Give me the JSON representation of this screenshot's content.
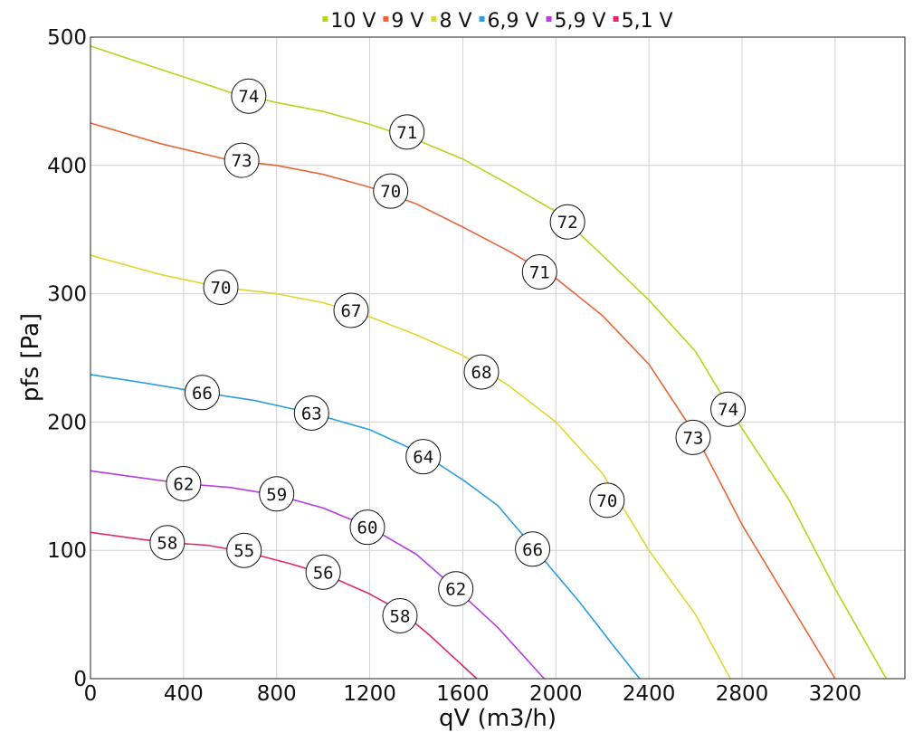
{
  "chart_data": {
    "type": "line",
    "xlabel": "qV (m3/h)",
    "ylabel": "pfs [Pa]",
    "xlim": [
      0,
      3500
    ],
    "ylim": [
      0,
      500
    ],
    "xticks": [
      0,
      400,
      800,
      1200,
      1600,
      2000,
      2400,
      2800,
      3200
    ],
    "yticks": [
      0,
      100,
      200,
      300,
      400,
      500
    ],
    "grid": true,
    "legend_position": "top",
    "series": [
      {
        "name": "10 V",
        "color": "#b5d61b",
        "points": [
          [
            0,
            493
          ],
          [
            300,
            475
          ],
          [
            600,
            457
          ],
          [
            800,
            449
          ],
          [
            1000,
            442
          ],
          [
            1200,
            432
          ],
          [
            1400,
            420
          ],
          [
            1600,
            405
          ],
          [
            1800,
            385
          ],
          [
            2000,
            364
          ],
          [
            2200,
            330
          ],
          [
            2400,
            295
          ],
          [
            2600,
            255
          ],
          [
            2800,
            195
          ],
          [
            3000,
            140
          ],
          [
            3200,
            70
          ],
          [
            3420,
            0
          ]
        ],
        "markers": [
          {
            "x": 680,
            "y": 454,
            "label": "74"
          },
          {
            "x": 1360,
            "y": 426,
            "label": "71"
          },
          {
            "x": 2050,
            "y": 356,
            "label": "72"
          },
          {
            "x": 2740,
            "y": 210,
            "label": "74"
          }
        ]
      },
      {
        "name": "9 V",
        "color": "#e8653a",
        "points": [
          [
            0,
            433
          ],
          [
            300,
            417
          ],
          [
            600,
            404
          ],
          [
            800,
            400
          ],
          [
            1000,
            393
          ],
          [
            1200,
            383
          ],
          [
            1400,
            370
          ],
          [
            1600,
            352
          ],
          [
            1800,
            333
          ],
          [
            2000,
            312
          ],
          [
            2200,
            283
          ],
          [
            2400,
            245
          ],
          [
            2600,
            190
          ],
          [
            2800,
            120
          ],
          [
            3000,
            60
          ],
          [
            3200,
            0
          ]
        ],
        "markers": [
          {
            "x": 650,
            "y": 404,
            "label": "73"
          },
          {
            "x": 1290,
            "y": 380,
            "label": "70"
          },
          {
            "x": 1930,
            "y": 317,
            "label": "71"
          },
          {
            "x": 2590,
            "y": 188,
            "label": "73"
          }
        ]
      },
      {
        "name": "8 V",
        "color": "#e0d62e",
        "points": [
          [
            0,
            330
          ],
          [
            300,
            315
          ],
          [
            560,
            305
          ],
          [
            800,
            300
          ],
          [
            1000,
            293
          ],
          [
            1200,
            282
          ],
          [
            1400,
            268
          ],
          [
            1600,
            252
          ],
          [
            1800,
            228
          ],
          [
            2000,
            200
          ],
          [
            2200,
            160
          ],
          [
            2400,
            100
          ],
          [
            2600,
            50
          ],
          [
            2750,
            0
          ]
        ],
        "markers": [
          {
            "x": 560,
            "y": 305,
            "label": "70"
          },
          {
            "x": 1120,
            "y": 287,
            "label": "67"
          },
          {
            "x": 1680,
            "y": 239,
            "label": "68"
          },
          {
            "x": 2220,
            "y": 139,
            "label": "70"
          }
        ]
      },
      {
        "name": "6,9 V",
        "color": "#2b9de0",
        "points": [
          [
            0,
            237
          ],
          [
            250,
            230
          ],
          [
            480,
            223
          ],
          [
            700,
            217
          ],
          [
            950,
            207
          ],
          [
            1200,
            194
          ],
          [
            1430,
            175
          ],
          [
            1600,
            155
          ],
          [
            1750,
            135
          ],
          [
            1900,
            103
          ],
          [
            2100,
            60
          ],
          [
            2250,
            25
          ],
          [
            2360,
            0
          ]
        ],
        "markers": [
          {
            "x": 480,
            "y": 223,
            "label": "66"
          },
          {
            "x": 950,
            "y": 207,
            "label": "63"
          },
          {
            "x": 1430,
            "y": 173,
            "label": "64"
          },
          {
            "x": 1900,
            "y": 101,
            "label": "66"
          }
        ]
      },
      {
        "name": "5,9 V",
        "color": "#b63ce0",
        "points": [
          [
            0,
            162
          ],
          [
            200,
            157
          ],
          [
            400,
            152
          ],
          [
            600,
            149
          ],
          [
            800,
            143
          ],
          [
            1000,
            133
          ],
          [
            1200,
            118
          ],
          [
            1400,
            97
          ],
          [
            1570,
            70
          ],
          [
            1750,
            40
          ],
          [
            1950,
            0
          ]
        ],
        "markers": [
          {
            "x": 400,
            "y": 152,
            "label": "62"
          },
          {
            "x": 800,
            "y": 144,
            "label": "59"
          },
          {
            "x": 1190,
            "y": 118,
            "label": "60"
          },
          {
            "x": 1570,
            "y": 70,
            "label": "62"
          }
        ]
      },
      {
        "name": "5,1 V",
        "color": "#e0286a",
        "points": [
          [
            0,
            114
          ],
          [
            200,
            109
          ],
          [
            330,
            106
          ],
          [
            500,
            104
          ],
          [
            660,
            99
          ],
          [
            850,
            90
          ],
          [
            1000,
            82
          ],
          [
            1200,
            66
          ],
          [
            1330,
            53
          ],
          [
            1450,
            35
          ],
          [
            1660,
            0
          ]
        ],
        "markers": [
          {
            "x": 330,
            "y": 106,
            "label": "58"
          },
          {
            "x": 660,
            "y": 100,
            "label": "55"
          },
          {
            "x": 1000,
            "y": 83,
            "label": "56"
          },
          {
            "x": 1330,
            "y": 49,
            "label": "58"
          }
        ]
      }
    ]
  }
}
